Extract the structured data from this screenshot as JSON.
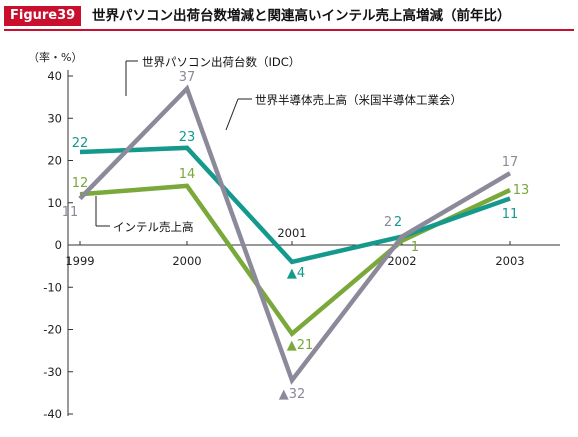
{
  "figure": {
    "badge": "Figure39",
    "title": "世界パソコン出荷台数増減と関連高いインテル売上高増減（前年比）"
  },
  "chart_data": {
    "type": "line",
    "title": "世界パソコン出荷台数増減と関連高いインテル売上高増減（前年比）",
    "ylabel": "（率・%）",
    "x": [
      "1999",
      "2000",
      "2001",
      "2002",
      "2003"
    ],
    "ylim": [
      -40,
      40
    ],
    "yticks": [
      "40",
      "30",
      "20",
      "10",
      "0",
      "-10",
      "-20",
      "-30",
      "-40"
    ],
    "grid": false,
    "series": [
      {
        "name": "世界パソコン出荷台数（IDC）",
        "color": "#8c8a9a",
        "values": [
          11,
          37,
          -32,
          2,
          17
        ],
        "labels": [
          "11",
          "37",
          "▲32",
          "2",
          "17"
        ]
      },
      {
        "name": "世界半導体売上高（米国半導体工業会）",
        "color": "#14998c",
        "values": [
          22,
          23,
          -4,
          2,
          11
        ],
        "labels": [
          "22",
          "23",
          "▲4",
          "2",
          "11"
        ]
      },
      {
        "name": "インテル売上高",
        "color": "#7aa83a",
        "values": [
          12,
          14,
          -21,
          1,
          13
        ],
        "labels": [
          "12",
          "14",
          "▲21",
          "1",
          "13"
        ]
      }
    ]
  }
}
